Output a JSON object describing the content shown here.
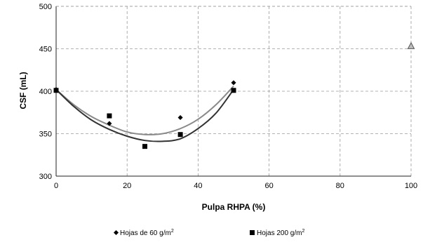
{
  "chart_data": {
    "type": "scatter",
    "xlabel": "Pulpa  RHPA (%)",
    "ylabel": "CSF (mL)",
    "xlim": [
      0,
      100
    ],
    "ylim": [
      300,
      500
    ],
    "x_ticks": [
      "0",
      "20",
      "40",
      "60",
      "80",
      "100"
    ],
    "y_ticks": [
      "300",
      "350",
      "400",
      "450",
      "500"
    ],
    "grid": true,
    "legend_position": "bottom",
    "series": [
      {
        "name_prefix": "Hojas de 60 g/m",
        "name_sup": "2",
        "marker": "diamond",
        "color": "#000000",
        "points": [
          [
            0,
            402
          ],
          [
            15,
            362
          ],
          [
            35,
            369
          ],
          [
            50,
            410
          ]
        ],
        "trend_color": "#8a8a8a",
        "trend": [
          [
            0,
            402
          ],
          [
            5,
            384
          ],
          [
            10,
            370
          ],
          [
            15,
            360
          ],
          [
            20,
            352
          ],
          [
            25,
            349
          ],
          [
            30,
            350
          ],
          [
            35,
            356
          ],
          [
            40,
            367
          ],
          [
            45,
            384
          ],
          [
            50,
            406
          ]
        ]
      },
      {
        "name_prefix": "Hojas 200 g/m",
        "name_sup": "2",
        "marker": "square",
        "color": "#000000",
        "points": [
          [
            0,
            401
          ],
          [
            15,
            371
          ],
          [
            25,
            335
          ],
          [
            35,
            349
          ],
          [
            50,
            401
          ]
        ],
        "trend_color": "#333333",
        "trend": [
          [
            0,
            402
          ],
          [
            5,
            382
          ],
          [
            10,
            366
          ],
          [
            15,
            355
          ],
          [
            20,
            347
          ],
          [
            25,
            342
          ],
          [
            30,
            341
          ],
          [
            35,
            344
          ],
          [
            40,
            356
          ],
          [
            45,
            374
          ],
          [
            50,
            402
          ]
        ]
      },
      {
        "name": "",
        "marker": "triangle",
        "color": "#555555",
        "points": [
          [
            100,
            453
          ]
        ],
        "trend": []
      }
    ]
  }
}
